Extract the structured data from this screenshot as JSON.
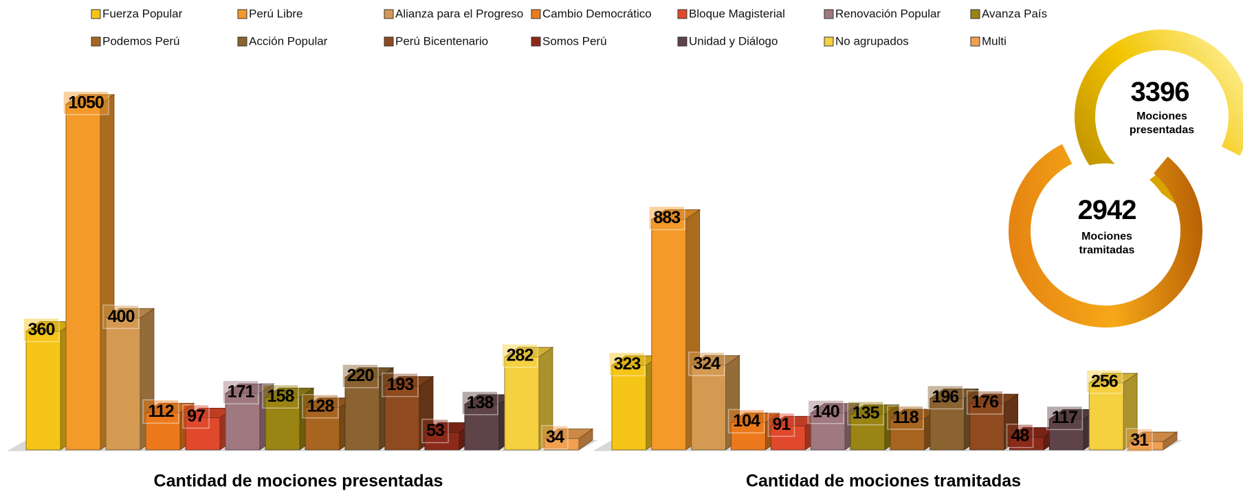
{
  "legend": [
    {
      "name": "Fuerza Popular",
      "color": "#f5c518"
    },
    {
      "name": "Perú Libre",
      "color": "#f39a2b"
    },
    {
      "name": "Alianza para el Progreso",
      "color": "#d49a52"
    },
    {
      "name": "Cambio Democrático",
      "color": "#ec7a1c"
    },
    {
      "name": "Bloque Magisterial",
      "color": "#e0492c"
    },
    {
      "name": "Renovación Popular",
      "color": "#a07880"
    },
    {
      "name": "Avanza País",
      "color": "#9a8414"
    },
    {
      "name": "Podemos Perú",
      "color": "#a8651f"
    },
    {
      "name": "Acción Popular",
      "color": "#8a6330"
    },
    {
      "name": "Perú Bicentenario",
      "color": "#8f4a20"
    },
    {
      "name": "Somos Perú",
      "color": "#8c2a1a"
    },
    {
      "name": "Unidad y Diálogo",
      "color": "#5e4448"
    },
    {
      "name": "No agrupados",
      "color": "#f5d040"
    },
    {
      "name": "Multi",
      "color": "#f0a050"
    }
  ],
  "chart_data": [
    {
      "type": "bar",
      "title": "Cantidad de mociones presentadas",
      "values": [
        360,
        1050,
        400,
        112,
        97,
        171,
        158,
        128,
        220,
        193,
        53,
        138,
        282,
        34
      ],
      "ylim": [
        0,
        1150
      ]
    },
    {
      "type": "bar",
      "title": "Cantidad de mociones tramitadas",
      "values": [
        323,
        883,
        324,
        104,
        91,
        140,
        135,
        118,
        196,
        176,
        48,
        117,
        256,
        31
      ],
      "ylim": [
        0,
        1450
      ]
    }
  ],
  "summary": [
    {
      "value": 3396,
      "label": "Mociones presentadas"
    },
    {
      "value": 2942,
      "label": "Mociones tramitadas"
    }
  ]
}
